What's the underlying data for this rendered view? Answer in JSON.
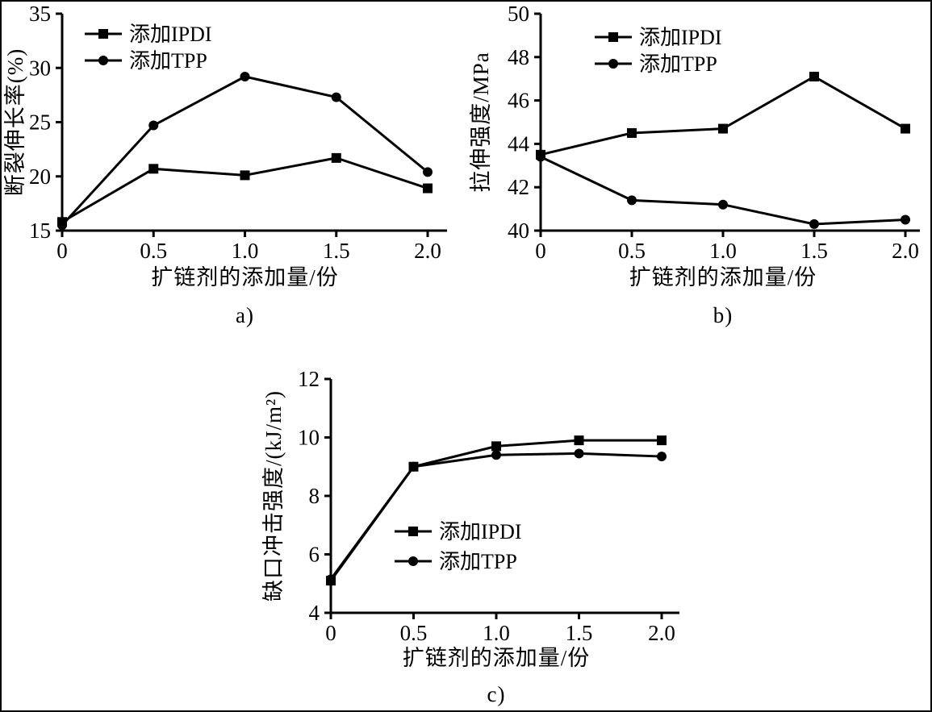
{
  "figure": {
    "background": "#ffffff",
    "line_color": "#000000"
  },
  "chart_data": [
    {
      "id": "a",
      "type": "line",
      "caption": "a)",
      "xlabel": "扩链剂的添加量/份",
      "ylabel": "断裂伸长率(%)",
      "xlim": [
        0,
        2.0
      ],
      "ylim": [
        15,
        35
      ],
      "x": [
        0,
        0.5,
        1.0,
        1.5,
        2.0
      ],
      "xticks": [
        0,
        0.5,
        1.0,
        1.5,
        2.0
      ],
      "xtick_labels": [
        "0",
        "0.5",
        "1.0",
        "1.5",
        "2.0"
      ],
      "yticks": [
        15,
        20,
        25,
        30,
        35
      ],
      "ytick_labels": [
        "15",
        "20",
        "25",
        "30",
        "35"
      ],
      "grid": false,
      "legend_pos": "upper-left",
      "series": [
        {
          "name": "添加IPDI",
          "marker": "square",
          "values": [
            15.8,
            20.7,
            20.1,
            21.7,
            18.9
          ]
        },
        {
          "name": "添加TPP",
          "marker": "circle",
          "values": [
            15.5,
            24.7,
            29.2,
            27.3,
            20.4
          ]
        }
      ]
    },
    {
      "id": "b",
      "type": "line",
      "caption": "b)",
      "xlabel": "扩链剂的添加量/份",
      "ylabel": "拉伸强度/MPa",
      "xlim": [
        0,
        2.0
      ],
      "ylim": [
        40,
        50
      ],
      "x": [
        0,
        0.5,
        1.0,
        1.5,
        2.0
      ],
      "xticks": [
        0,
        0.5,
        1.0,
        1.5,
        2.0
      ],
      "xtick_labels": [
        "0",
        "0.5",
        "1.0",
        "1.5",
        "2.0"
      ],
      "yticks": [
        40,
        42,
        44,
        46,
        48,
        50
      ],
      "ytick_labels": [
        "40",
        "42",
        "44",
        "46",
        "48",
        "50"
      ],
      "grid": false,
      "legend_pos": "upper-left",
      "series": [
        {
          "name": "添加IPDI",
          "marker": "square",
          "values": [
            43.5,
            44.5,
            44.7,
            47.1,
            44.7
          ]
        },
        {
          "name": "添加TPP",
          "marker": "circle",
          "values": [
            43.4,
            41.4,
            41.2,
            40.3,
            40.5
          ]
        }
      ]
    },
    {
      "id": "c",
      "type": "line",
      "caption": "c)",
      "xlabel": "扩链剂的添加量/份",
      "ylabel": "缺口冲击强度/(kJ/m²)",
      "xlim": [
        0,
        2.0
      ],
      "ylim": [
        4,
        12
      ],
      "x": [
        0,
        0.5,
        1.0,
        1.5,
        2.0
      ],
      "xticks": [
        0,
        0.5,
        1.0,
        1.5,
        2.0
      ],
      "xtick_labels": [
        "0",
        "0.5",
        "1.0",
        "1.5",
        "2.0"
      ],
      "yticks": [
        4,
        6,
        8,
        10,
        12
      ],
      "ytick_labels": [
        "4",
        "6",
        "8",
        "10",
        "12"
      ],
      "grid": false,
      "legend_pos": "center",
      "series": [
        {
          "name": "添加IPDI",
          "marker": "square",
          "values": [
            5.1,
            9.0,
            9.7,
            9.9,
            9.9
          ]
        },
        {
          "name": "添加TPP",
          "marker": "circle",
          "values": [
            5.15,
            9.0,
            9.4,
            9.45,
            9.35
          ]
        }
      ]
    }
  ]
}
